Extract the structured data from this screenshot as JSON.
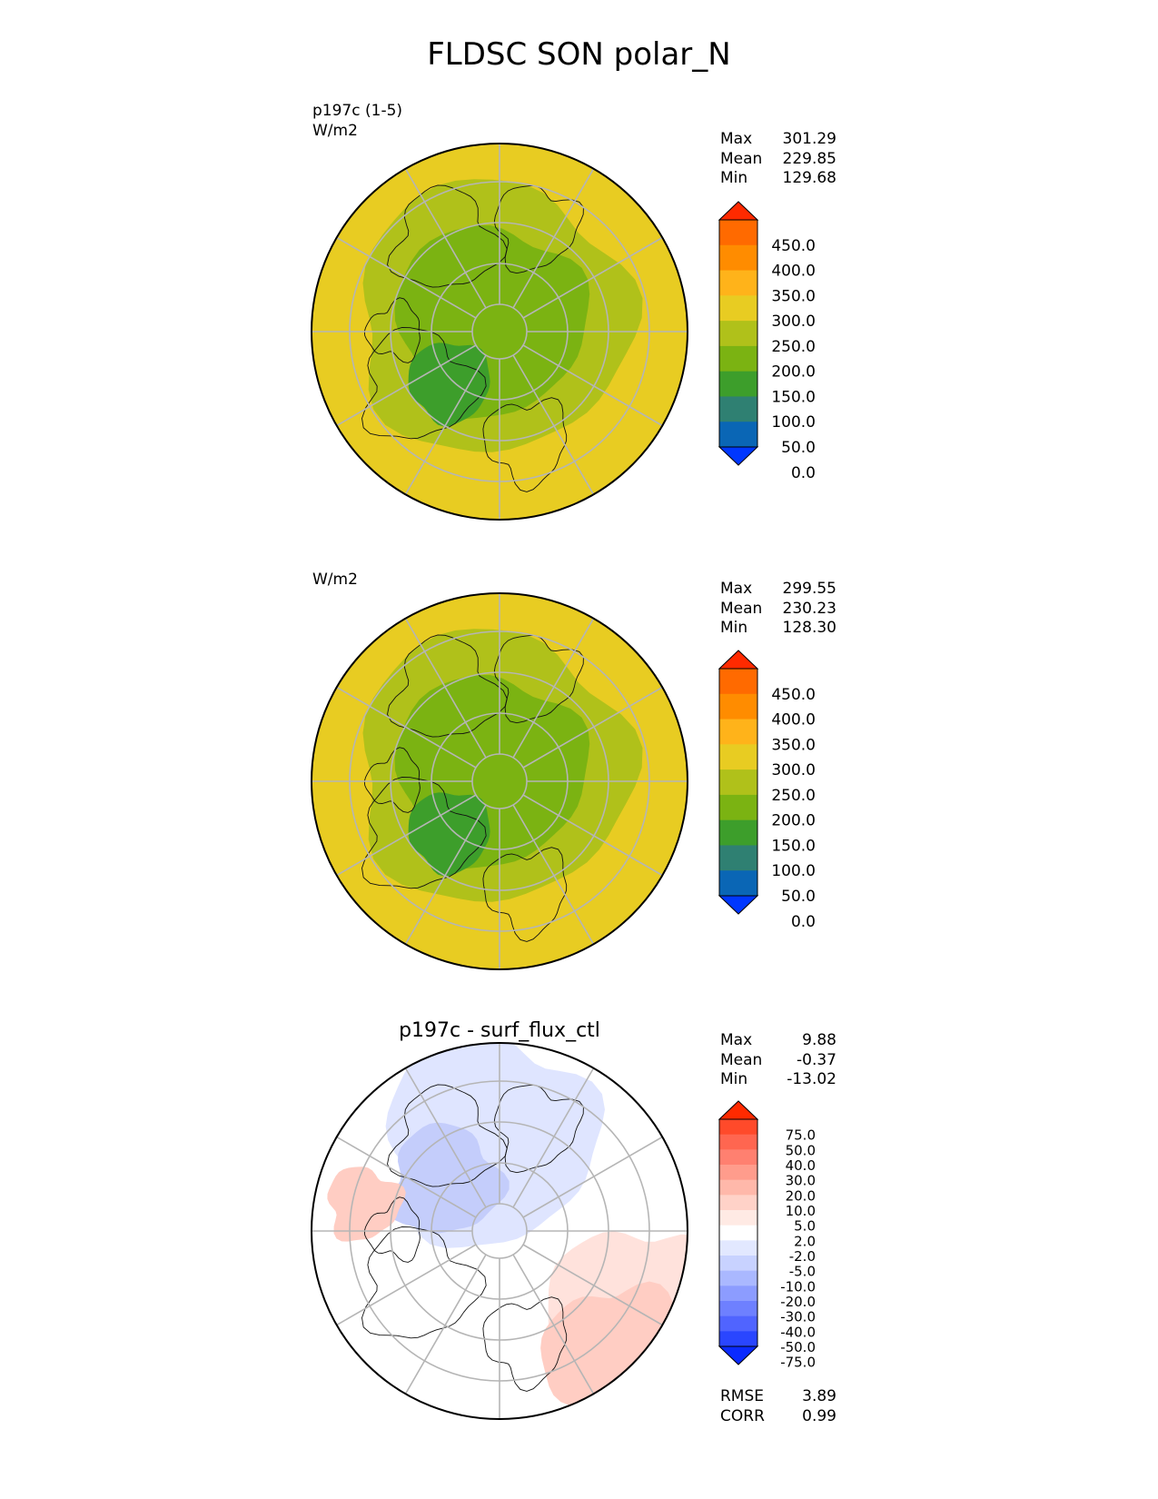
{
  "figure": {
    "title": "FLDSC SON polar_N"
  },
  "chart_data": [
    {
      "type": "polar-contour-map",
      "panel_label": "p197c (1-5)",
      "units": "W/m2",
      "subtitle": "",
      "stats": [
        {
          "label": "Max",
          "value": "301.29"
        },
        {
          "label": "Mean",
          "value": "229.85"
        },
        {
          "label": "Min",
          "value": "129.68"
        }
      ],
      "colorbar": {
        "levels": [
          "450.0",
          "400.0",
          "350.0",
          "300.0",
          "250.0",
          "200.0",
          "150.0",
          "100.0",
          "50.0",
          "0.0"
        ],
        "colors": [
          "#ff2a00",
          "#ff6a00",
          "#ff8c00",
          "#ffb31a",
          "#e8cc22",
          "#b0c11a",
          "#7bb312",
          "#3d9e2b",
          "#2f8072",
          "#0a66b5",
          "#0037ff"
        ],
        "extend": "both"
      },
      "field": {
        "outer_color": "#e8cc22",
        "rings": [
          {
            "value_band": "200-250",
            "color": "#b0c11a"
          },
          {
            "value_band": "150-200",
            "color": "#7bb312"
          },
          {
            "value_band": "100-150",
            "color": "#3d9e2b"
          }
        ]
      }
    },
    {
      "type": "polar-contour-map",
      "panel_label": "",
      "units": "W/m2",
      "subtitle": "",
      "stats": [
        {
          "label": "Max",
          "value": "299.55"
        },
        {
          "label": "Mean",
          "value": "230.23"
        },
        {
          "label": "Min",
          "value": "128.30"
        }
      ],
      "colorbar": {
        "levels": [
          "450.0",
          "400.0",
          "350.0",
          "300.0",
          "250.0",
          "200.0",
          "150.0",
          "100.0",
          "50.0",
          "0.0"
        ],
        "colors": [
          "#ff2a00",
          "#ff6a00",
          "#ff8c00",
          "#ffb31a",
          "#e8cc22",
          "#b0c11a",
          "#7bb312",
          "#3d9e2b",
          "#2f8072",
          "#0a66b5",
          "#0037ff"
        ],
        "extend": "both"
      },
      "field": {
        "outer_color": "#e8cc22",
        "rings": [
          {
            "value_band": "200-250",
            "color": "#b0c11a"
          },
          {
            "value_band": "150-200",
            "color": "#7bb312"
          },
          {
            "value_band": "100-150",
            "color": "#3d9e2b"
          }
        ]
      }
    },
    {
      "type": "polar-contour-map",
      "panel_label": "",
      "units": "",
      "subtitle": "p197c - surf_flux_ctl",
      "stats": [
        {
          "label": "Max",
          "value": "9.88"
        },
        {
          "label": "Mean",
          "value": "-0.37"
        },
        {
          "label": "Min",
          "value": "-13.02"
        }
      ],
      "extra_stats": [
        {
          "label": "RMSE",
          "value": "3.89"
        },
        {
          "label": "CORR",
          "value": "0.99"
        }
      ],
      "colorbar": {
        "levels": [
          "75.0",
          "50.0",
          "40.0",
          "30.0",
          "20.0",
          "10.0",
          "5.0",
          "2.0",
          "-2.0",
          "-5.0",
          "-10.0",
          "-20.0",
          "-30.0",
          "-40.0",
          "-50.0",
          "-75.0"
        ],
        "colors": [
          "#ff2a00",
          "#ff4a2a",
          "#ff6650",
          "#ff8070",
          "#ff9c8c",
          "#ffb8aa",
          "#ffd2c8",
          "#ffeae4",
          "#ffffff",
          "#e2e8ff",
          "#c8d2ff",
          "#aab8ff",
          "#8c9cff",
          "#6e80ff",
          "#5064ff",
          "#2a46ff",
          "#0a2aff"
        ],
        "extend": "both"
      },
      "field": {
        "outer_color": "#ffffff",
        "patches": [
          {
            "value_band": "-5 to -2",
            "color": "#dfe5ff"
          },
          {
            "value_band": "-10 to -5",
            "color": "#c4cdfb"
          },
          {
            "value_band": "2 to 5",
            "color": "#ffe2dc"
          },
          {
            "value_band": "5 to 10",
            "color": "#ffcdc3"
          }
        ]
      }
    }
  ]
}
